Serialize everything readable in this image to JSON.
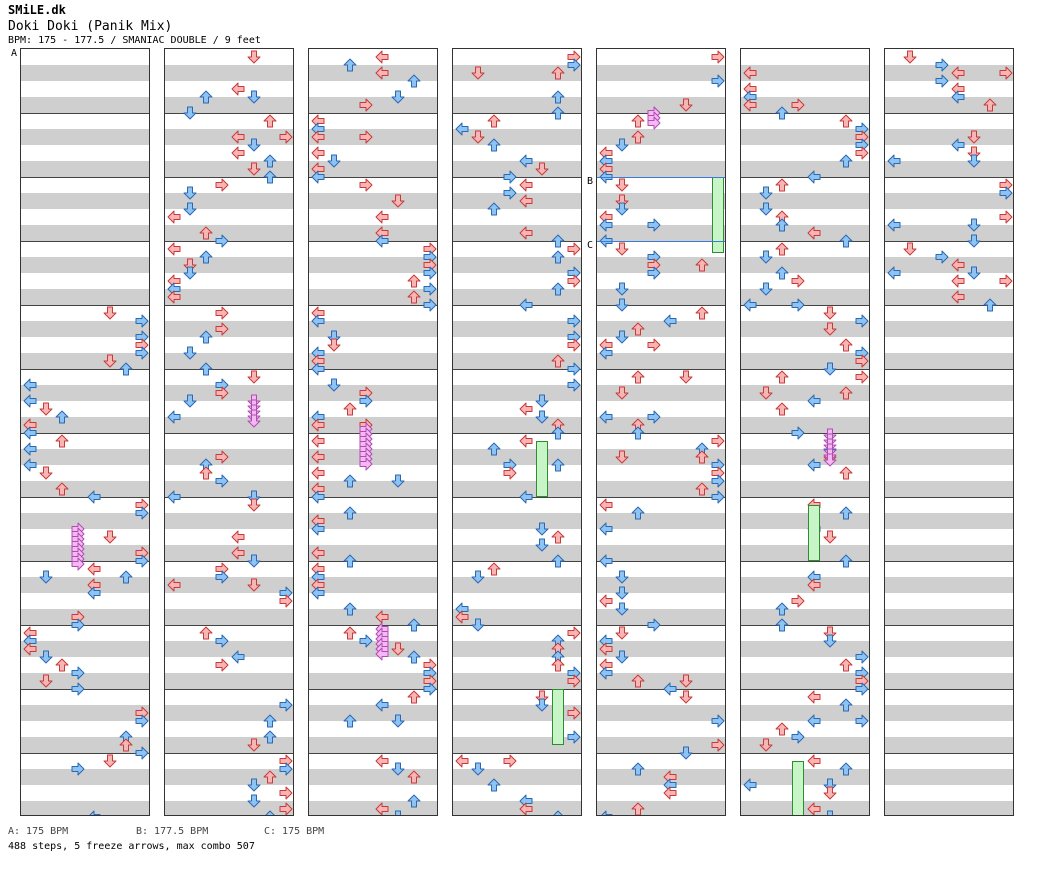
{
  "header": {
    "site": "SMiLE.dk",
    "title": "Doki Doki (Panik Mix)",
    "meta": "BPM: 175 - 177.5 / SMANIAC DOUBLE / 9 feet"
  },
  "bpm_markers": [
    {
      "label": "A",
      "column": 0,
      "measure": 0
    },
    {
      "label": "B",
      "column": 4,
      "measure": 2
    },
    {
      "label": "C",
      "column": 4,
      "measure": 3
    }
  ],
  "legend": {
    "a": "A: 175 BPM",
    "b": "B: 177.5 BPM",
    "c": "C: 175 BPM"
  },
  "stats": "488 steps, 5 freeze arrows, max combo 507",
  "colors": {
    "red_fill": "#f8b5b5",
    "red_stroke": "#c83a3a",
    "blue_fill": "#8fc3f2",
    "blue_stroke": "#2a69b3",
    "pink_fill": "#f5b8f5",
    "pink_stroke": "#b04db0",
    "freeze_fill": "#c7f5c7",
    "freeze_stroke": "#2e8b2e"
  }
}
